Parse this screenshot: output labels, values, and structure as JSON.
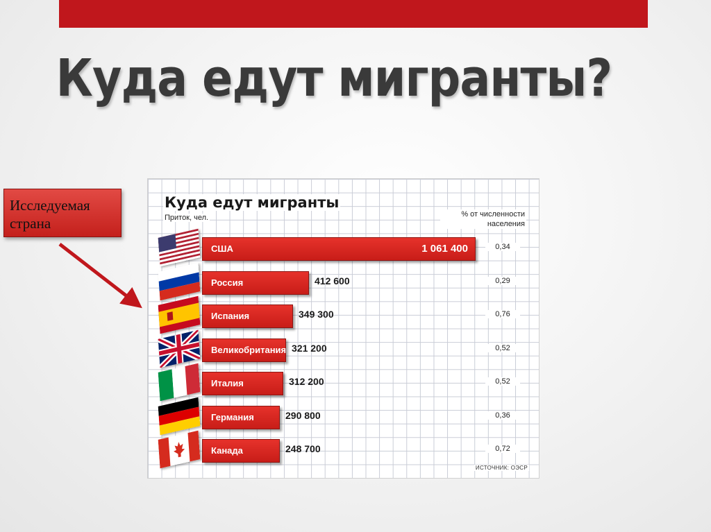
{
  "slide": {
    "title": "Куда едут мигранты?",
    "callout": {
      "line1": "Исследуемая",
      "line2": "страна"
    }
  },
  "colors": {
    "accent": "#c0171c",
    "bar": "#d9241e",
    "grid": "#c9ccd6"
  },
  "chart_data": {
    "type": "bar",
    "orientation": "horizontal",
    "title": "Куда едут мигранты",
    "subtitle": "Приток, чел.",
    "value_column_header": "% от численности населения",
    "source": "ИСТОЧНИК: ОЭСР",
    "grid": true,
    "categories": [
      "США",
      "Россия",
      "Испания",
      "Великобритания",
      "Италия",
      "Германия",
      "Канада"
    ],
    "values": [
      1061400,
      412600,
      349300,
      321200,
      312200,
      290800,
      248700
    ],
    "value_labels": [
      "1 061 400",
      "412 600",
      "349 300",
      "321 200",
      "312 200",
      "290 800",
      "248 700"
    ],
    "percent_of_population": [
      "0,34",
      "0,29",
      "0,76",
      "0,52",
      "0,52",
      "0,36",
      "0,72"
    ],
    "flags": [
      "usa-flag-icon",
      "russia-flag-icon",
      "spain-flag-icon",
      "uk-flag-icon",
      "italy-flag-icon",
      "germany-flag-icon",
      "canada-flag-icon"
    ]
  }
}
